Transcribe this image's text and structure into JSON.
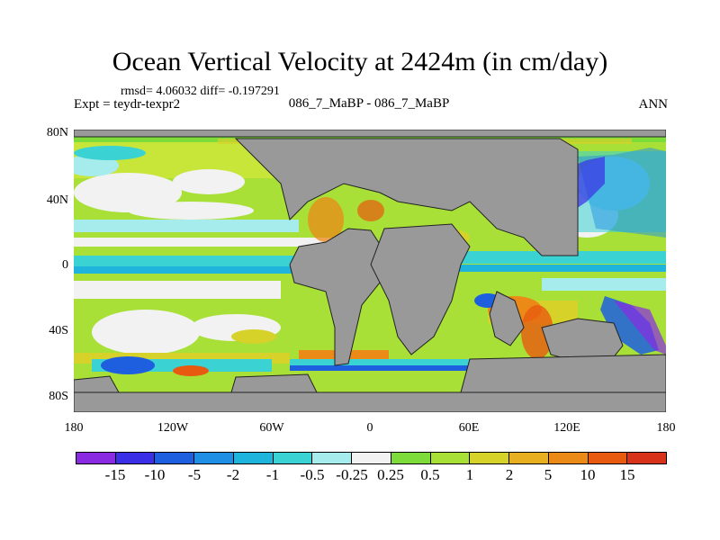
{
  "title": "Ocean Vertical Velocity at 2424m (in cm/day)",
  "stats": "rmsd= 4.06032 diff= -0.197291",
  "expt": "Expt = teydr-texpr2",
  "center_label": "086_7_MaBP - 086_7_MaBP",
  "season": "ANN",
  "lat_labels": [
    "80N",
    "40N",
    "0",
    "40S",
    "80S"
  ],
  "lon_labels": [
    "180",
    "120W",
    "60W",
    "0",
    "60E",
    "120E",
    "180"
  ],
  "colorbar": {
    "labels": [
      "-15",
      "-10",
      "-5",
      "-2",
      "-1",
      "-0.5",
      "-0.25",
      "0.25",
      "0.5",
      "1",
      "2",
      "5",
      "10",
      "15"
    ],
    "colors": [
      "#8a2be2",
      "#3a2ee6",
      "#1e5fe0",
      "#1f8fe6",
      "#1fb4dc",
      "#3ad2d2",
      "#a6ecec",
      "#f2f2f2",
      "#7ddc3a",
      "#a8e038",
      "#d6d22a",
      "#e8b020",
      "#ec8a18",
      "#e85a10",
      "#d8321a"
    ]
  },
  "map_colors": {
    "land": "#999999",
    "coast": "#222222",
    "ocean_base": "#a8e038"
  }
}
